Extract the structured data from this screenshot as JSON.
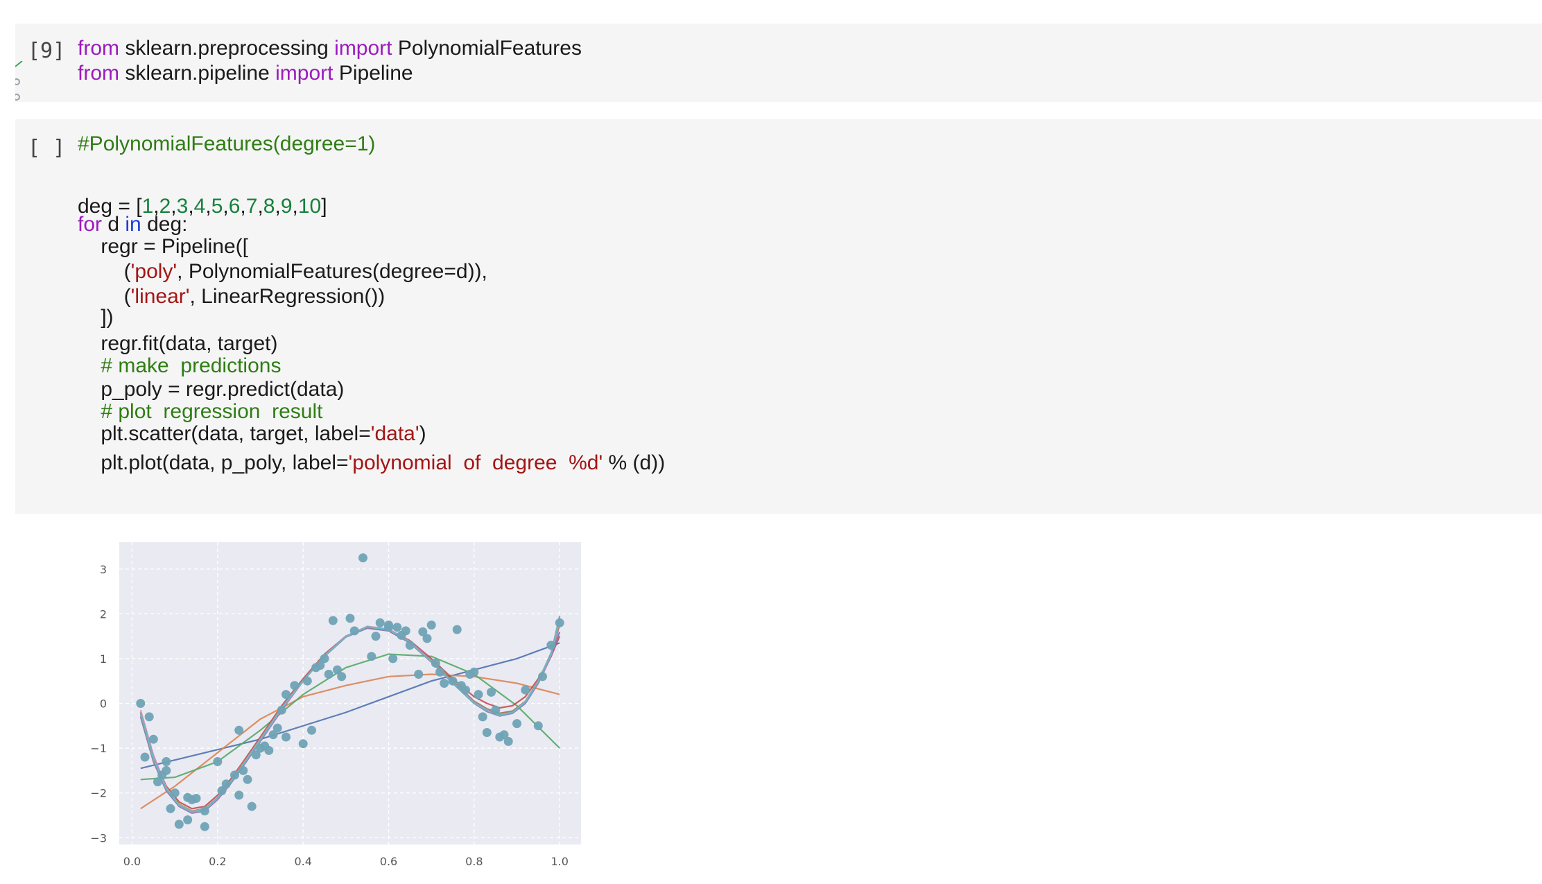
{
  "cells": [
    {
      "prompt": "[9]",
      "lines": [
        [
          {
            "t": "from",
            "c": "kw"
          },
          {
            "t": " sklearn.preprocessing ",
            "c": ""
          },
          {
            "t": "import",
            "c": "kw"
          },
          {
            "t": " PolynomialFeatures",
            "c": ""
          }
        ],
        [
          {
            "t": "from",
            "c": "kw"
          },
          {
            "t": " sklearn.pipeline ",
            "c": ""
          },
          {
            "t": "import",
            "c": "kw"
          },
          {
            "t": " Pipeline",
            "c": ""
          }
        ]
      ]
    },
    {
      "prompt": "[ ]",
      "lines": [
        [
          {
            "t": "#PolynomialFeatures(degree=1)",
            "c": "cm"
          }
        ],
        [],
        [
          {
            "t": "deg = [",
            "c": ""
          },
          {
            "t": "1",
            "c": "num"
          },
          {
            "t": ",",
            "c": ""
          },
          {
            "t": "2",
            "c": "num"
          },
          {
            "t": ",",
            "c": ""
          },
          {
            "t": "3",
            "c": "num"
          },
          {
            "t": ",",
            "c": ""
          },
          {
            "t": "4",
            "c": "num"
          },
          {
            "t": ",",
            "c": ""
          },
          {
            "t": "5",
            "c": "num"
          },
          {
            "t": ",",
            "c": ""
          },
          {
            "t": "6",
            "c": "num"
          },
          {
            "t": ",",
            "c": ""
          },
          {
            "t": "7",
            "c": "num"
          },
          {
            "t": ",",
            "c": ""
          },
          {
            "t": "8",
            "c": "num"
          },
          {
            "t": ",",
            "c": ""
          },
          {
            "t": "9",
            "c": "num"
          },
          {
            "t": ",",
            "c": ""
          },
          {
            "t": "10",
            "c": "num"
          },
          {
            "t": "]",
            "c": ""
          }
        ],
        [
          {
            "t": "for",
            "c": "kw"
          },
          {
            "t": " d ",
            "c": ""
          },
          {
            "t": "in",
            "c": "kwb"
          },
          {
            "t": " deg:",
            "c": ""
          }
        ],
        [
          {
            "t": "    regr = Pipeline([",
            "c": ""
          }
        ],
        [
          {
            "t": "        (",
            "c": ""
          },
          {
            "t": "'poly'",
            "c": "str"
          },
          {
            "t": ", PolynomialFeatures(degree=d)),",
            "c": ""
          }
        ],
        [
          {
            "t": "        (",
            "c": ""
          },
          {
            "t": "'linear'",
            "c": "str"
          },
          {
            "t": ", LinearRegression())",
            "c": ""
          }
        ],
        [
          {
            "t": "    ])",
            "c": ""
          }
        ],
        [
          {
            "t": "    regr.fit(data, target)",
            "c": ""
          }
        ],
        [
          {
            "t": "    # make  predictions",
            "c": "cm"
          }
        ],
        [
          {
            "t": "    p_poly = regr.predict(data)",
            "c": ""
          }
        ],
        [
          {
            "t": "    # plot  regression  result",
            "c": "cm"
          }
        ],
        [
          {
            "t": "    plt.scatter(data, target, label=",
            "c": ""
          },
          {
            "t": "'data'",
            "c": "str"
          },
          {
            "t": ")",
            "c": ""
          }
        ],
        [
          {
            "t": "    plt.plot(data, p_poly, label=",
            "c": ""
          },
          {
            "t": "'polynomial  of  degree  %d'",
            "c": "str"
          },
          {
            "t": " % (d))",
            "c": ""
          }
        ]
      ]
    }
  ],
  "chart_data": {
    "type": "scatter",
    "title": "",
    "xlabel": "",
    "ylabel": "",
    "xlim": [
      -0.03,
      1.05
    ],
    "ylim": [
      -3.15,
      3.6
    ],
    "xticks": [
      "0.0",
      "0.2",
      "0.4",
      "0.6",
      "0.8",
      "1.0"
    ],
    "yticks": [
      "−3",
      "−2",
      "−1",
      "0",
      "1",
      "2",
      "3"
    ],
    "grid": true,
    "background": "#eaeaf2",
    "scatter": {
      "color": "#6fa3b5",
      "x": [
        0.02,
        0.03,
        0.04,
        0.05,
        0.06,
        0.07,
        0.08,
        0.08,
        0.09,
        0.1,
        0.11,
        0.13,
        0.13,
        0.14,
        0.15,
        0.17,
        0.17,
        0.2,
        0.21,
        0.22,
        0.24,
        0.25,
        0.25,
        0.26,
        0.27,
        0.28,
        0.29,
        0.3,
        0.31,
        0.32,
        0.33,
        0.34,
        0.35,
        0.36,
        0.38,
        0.4,
        0.41,
        0.42,
        0.43,
        0.44,
        0.45,
        0.46,
        0.47,
        0.48,
        0.51,
        0.52,
        0.54,
        0.56,
        0.57,
        0.58,
        0.6,
        0.61,
        0.62,
        0.63,
        0.64,
        0.65,
        0.67,
        0.68,
        0.69,
        0.7,
        0.71,
        0.72,
        0.73,
        0.75,
        0.76,
        0.77,
        0.78,
        0.79,
        0.8,
        0.81,
        0.82,
        0.83,
        0.84,
        0.85,
        0.86,
        0.87,
        0.88,
        0.9,
        0.92,
        0.95,
        0.96,
        0.98,
        1.0,
        0.36,
        0.49,
        0.6
      ],
      "y": [
        0.0,
        -1.2,
        -0.3,
        -0.8,
        -1.75,
        -1.6,
        -1.3,
        -1.5,
        -2.35,
        -2.0,
        -2.7,
        -2.6,
        -2.1,
        -2.15,
        -2.12,
        -2.75,
        -2.4,
        -1.3,
        -1.95,
        -1.8,
        -1.6,
        -0.6,
        -2.05,
        -1.5,
        -1.7,
        -2.3,
        -1.15,
        -1.0,
        -0.95,
        -1.05,
        -0.7,
        -0.55,
        -0.15,
        -0.75,
        0.4,
        -0.9,
        0.5,
        -0.6,
        0.8,
        0.85,
        1.0,
        0.65,
        1.85,
        0.75,
        1.9,
        1.62,
        3.25,
        1.05,
        1.5,
        1.8,
        1.75,
        1.0,
        1.7,
        1.52,
        1.62,
        1.3,
        0.65,
        1.6,
        1.45,
        1.75,
        0.9,
        0.7,
        0.45,
        0.5,
        1.65,
        0.4,
        0.3,
        0.65,
        0.7,
        0.2,
        -0.3,
        -0.65,
        0.25,
        -0.15,
        -0.75,
        -0.7,
        -0.85,
        -0.45,
        0.3,
        -0.5,
        0.6,
        1.3,
        1.8,
        0.2,
        0.6,
        1.7
      ]
    },
    "series": [
      {
        "color": "#4c72b0",
        "x": [
          0.02,
          0.3,
          0.5,
          0.7,
          0.9,
          1.0
        ],
        "y": [
          -1.45,
          -0.8,
          -0.2,
          0.5,
          1.0,
          1.35
        ]
      },
      {
        "color": "#dd8452",
        "x": [
          0.02,
          0.1,
          0.2,
          0.3,
          0.4,
          0.5,
          0.6,
          0.7,
          0.8,
          0.9,
          1.0
        ],
        "y": [
          -2.35,
          -1.85,
          -1.1,
          -0.35,
          0.15,
          0.4,
          0.6,
          0.65,
          0.6,
          0.45,
          0.2
        ]
      },
      {
        "color": "#55a868",
        "x": [
          0.02,
          0.1,
          0.2,
          0.3,
          0.4,
          0.5,
          0.6,
          0.7,
          0.8,
          0.9,
          1.0
        ],
        "y": [
          -1.7,
          -1.65,
          -1.3,
          -0.6,
          0.2,
          0.8,
          1.1,
          1.05,
          0.65,
          -0.05,
          -1.0
        ]
      },
      {
        "color": "#c44e52",
        "x": [
          0.02,
          0.05,
          0.08,
          0.11,
          0.14,
          0.17,
          0.2,
          0.23,
          0.26,
          0.3,
          0.35,
          0.4,
          0.45,
          0.5,
          0.55,
          0.6,
          0.65,
          0.7,
          0.75,
          0.8,
          0.83,
          0.86,
          0.89,
          0.92,
          0.95,
          0.98,
          1.0
        ],
        "y": [
          -0.2,
          -1.2,
          -1.85,
          -2.2,
          -2.35,
          -2.3,
          -2.05,
          -1.7,
          -1.3,
          -0.75,
          -0.05,
          0.55,
          1.1,
          1.5,
          1.7,
          1.65,
          1.4,
          1.0,
          0.55,
          0.15,
          0.0,
          -0.1,
          -0.05,
          0.15,
          0.55,
          1.05,
          1.5
        ]
      },
      {
        "color": "#8172b2",
        "x": [
          0.02,
          0.05,
          0.08,
          0.11,
          0.14,
          0.17,
          0.2,
          0.23,
          0.26,
          0.3,
          0.35,
          0.4,
          0.45,
          0.5,
          0.55,
          0.6,
          0.65,
          0.7,
          0.75,
          0.8,
          0.83,
          0.86,
          0.89,
          0.92,
          0.95,
          0.98,
          1.0
        ],
        "y": [
          -0.3,
          -1.3,
          -1.95,
          -2.3,
          -2.45,
          -2.4,
          -2.15,
          -1.8,
          -1.4,
          -0.85,
          -0.15,
          0.5,
          1.05,
          1.48,
          1.68,
          1.62,
          1.35,
          0.92,
          0.45,
          0.0,
          -0.18,
          -0.28,
          -0.22,
          0.0,
          0.45,
          1.05,
          1.6
        ]
      },
      {
        "color": "#937860",
        "x": [
          0.02,
          0.05,
          0.08,
          0.11,
          0.14,
          0.17,
          0.2,
          0.23,
          0.26,
          0.3,
          0.35,
          0.4,
          0.45,
          0.5,
          0.55,
          0.6,
          0.65,
          0.7,
          0.75,
          0.8,
          0.83,
          0.86,
          0.89,
          0.92,
          0.95,
          0.98,
          1.0
        ],
        "y": [
          -0.25,
          -1.25,
          -1.9,
          -2.25,
          -2.4,
          -2.35,
          -2.1,
          -1.75,
          -1.35,
          -0.8,
          -0.1,
          0.52,
          1.08,
          1.5,
          1.7,
          1.64,
          1.37,
          0.95,
          0.5,
          0.05,
          -0.12,
          -0.22,
          -0.17,
          0.05,
          0.5,
          1.1,
          1.75
        ]
      },
      {
        "color": "#da8bc3",
        "x": [
          0.02,
          0.05,
          0.08,
          0.11,
          0.14,
          0.17,
          0.2,
          0.23,
          0.26,
          0.3,
          0.35,
          0.4,
          0.45,
          0.5,
          0.55,
          0.6,
          0.65,
          0.7,
          0.75,
          0.8,
          0.83,
          0.86,
          0.89,
          0.92,
          0.95,
          0.98,
          1.0
        ],
        "y": [
          -0.15,
          -1.15,
          -1.88,
          -2.28,
          -2.43,
          -2.38,
          -2.12,
          -1.77,
          -1.37,
          -0.82,
          -0.12,
          0.5,
          1.07,
          1.5,
          1.72,
          1.66,
          1.38,
          0.94,
          0.47,
          0.02,
          -0.15,
          -0.26,
          -0.2,
          0.03,
          0.48,
          1.08,
          1.85
        ]
      },
      {
        "color": "#8c8c8c",
        "x": [
          0.02,
          0.05,
          0.08,
          0.11,
          0.14,
          0.17,
          0.2,
          0.23,
          0.26,
          0.3,
          0.35,
          0.4,
          0.45,
          0.5,
          0.55,
          0.6,
          0.65,
          0.7,
          0.75,
          0.8,
          0.83,
          0.86,
          0.89,
          0.92,
          0.95,
          0.98,
          1.0
        ],
        "y": [
          -0.2,
          -1.22,
          -1.92,
          -2.27,
          -2.42,
          -2.37,
          -2.11,
          -1.76,
          -1.36,
          -0.8,
          -0.1,
          0.51,
          1.06,
          1.49,
          1.71,
          1.65,
          1.37,
          0.93,
          0.46,
          0.01,
          -0.16,
          -0.26,
          -0.2,
          0.03,
          0.49,
          1.12,
          1.95
        ]
      },
      {
        "color": "#ccb974",
        "x": [
          0.02,
          0.05,
          0.08,
          0.11,
          0.14,
          0.17,
          0.2,
          0.23,
          0.26,
          0.3,
          0.35,
          0.4,
          0.45,
          0.5,
          0.55,
          0.6,
          0.65,
          0.7,
          0.75,
          0.8,
          0.83,
          0.86,
          0.89,
          0.92,
          0.95,
          0.98,
          1.0
        ],
        "y": [
          -0.22,
          -1.24,
          -1.9,
          -2.26,
          -2.41,
          -2.36,
          -2.1,
          -1.75,
          -1.35,
          -0.8,
          -0.1,
          0.51,
          1.06,
          1.49,
          1.71,
          1.65,
          1.37,
          0.93,
          0.46,
          0.01,
          -0.16,
          -0.26,
          -0.2,
          0.04,
          0.5,
          1.13,
          1.9
        ]
      },
      {
        "color": "#64b5cd",
        "x": [
          0.02,
          0.05,
          0.08,
          0.11,
          0.14,
          0.17,
          0.2,
          0.23,
          0.26,
          0.3,
          0.35,
          0.4,
          0.45,
          0.5,
          0.55,
          0.6,
          0.65,
          0.7,
          0.75,
          0.8,
          0.83,
          0.86,
          0.89,
          0.92,
          0.95,
          0.98,
          1.0
        ],
        "y": [
          -0.21,
          -1.23,
          -1.91,
          -2.27,
          -2.42,
          -2.37,
          -2.11,
          -1.76,
          -1.36,
          -0.81,
          -0.1,
          0.51,
          1.06,
          1.49,
          1.71,
          1.65,
          1.37,
          0.93,
          0.46,
          0.01,
          -0.16,
          -0.26,
          -0.2,
          0.03,
          0.49,
          1.12,
          1.92
        ]
      }
    ]
  }
}
